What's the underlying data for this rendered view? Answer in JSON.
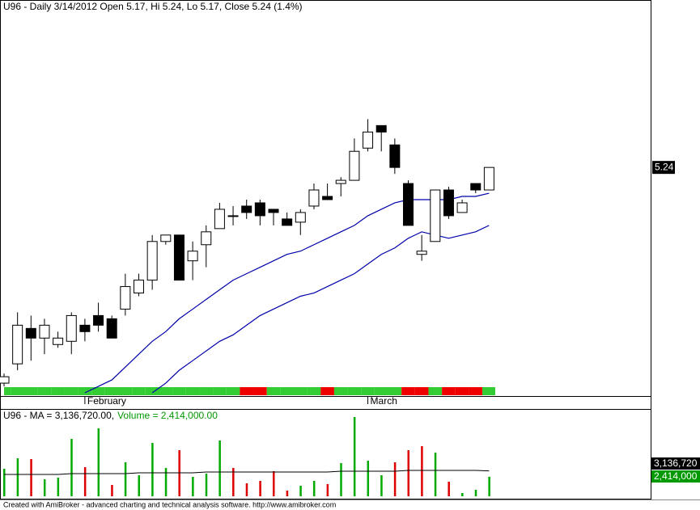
{
  "chart_data": [
    {
      "type": "candlestick",
      "title": "U96 - Daily 3/14/2012 Open 5.17, Hi 5.24, Lo 5.17, Close 5.24 (1.4%)",
      "categories": [
        null,
        null,
        null,
        null,
        null,
        null,
        "February",
        null,
        null,
        null,
        null,
        null,
        null,
        null,
        null,
        null,
        null,
        null,
        null,
        null,
        null,
        null,
        null,
        null,
        null,
        null,
        null,
        "March",
        null,
        null,
        null,
        null,
        null,
        null,
        null,
        null,
        null
      ],
      "open": [
        4.57,
        4.63,
        4.74,
        4.71,
        4.69,
        4.7,
        4.75,
        4.78,
        4.77,
        4.8,
        4.85,
        4.89,
        5.01,
        5.03,
        4.95,
        5.0,
        5.05,
        5.09,
        5.12,
        5.13,
        5.11,
        5.08,
        5.07,
        5.12,
        5.15,
        5.19,
        5.2,
        5.3,
        5.37,
        5.31,
        5.19,
        4.97,
        5.01,
        5.17,
        5.1,
        5.19,
        5.17
      ],
      "high": [
        4.6,
        4.79,
        4.78,
        4.77,
        4.73,
        4.79,
        4.77,
        4.82,
        4.78,
        4.91,
        4.91,
        5.03,
        5.03,
        5.03,
        5.01,
        5.06,
        5.13,
        5.12,
        5.14,
        5.14,
        5.11,
        5.1,
        5.11,
        5.19,
        5.19,
        5.21,
        5.33,
        5.39,
        5.37,
        5.33,
        5.2,
        5.03,
        5.17,
        5.18,
        5.14,
        5.19,
        5.24
      ],
      "low": [
        4.56,
        4.61,
        4.64,
        4.66,
        4.68,
        4.66,
        4.7,
        4.73,
        4.71,
        4.78,
        4.84,
        4.86,
        5.0,
        4.89,
        4.89,
        4.93,
        5.05,
        5.06,
        5.08,
        5.06,
        5.06,
        5.06,
        5.03,
        5.11,
        5.14,
        5.15,
        5.2,
        5.29,
        5.29,
        5.22,
        5.06,
        4.95,
        5.01,
        5.08,
        5.1,
        5.16,
        5.17
      ],
      "close": [
        4.59,
        4.75,
        4.71,
        4.75,
        4.71,
        4.78,
        4.73,
        4.75,
        4.71,
        4.87,
        4.89,
        5.01,
        5.03,
        4.89,
        4.98,
        5.04,
        5.11,
        5.09,
        5.1,
        5.09,
        5.1,
        5.06,
        5.1,
        5.17,
        5.14,
        5.2,
        5.29,
        5.35,
        5.35,
        5.24,
        5.06,
        4.98,
        5.17,
        5.09,
        5.13,
        5.17,
        5.24
      ],
      "up_color": "#ffffff",
      "down_color": "#000000",
      "series": [
        {
          "color": "#0000aa",
          "values": [
            null,
            null,
            null,
            null,
            null,
            null,
            4.54,
            4.56,
            4.58,
            4.62,
            4.66,
            4.7,
            4.73,
            4.77,
            4.8,
            4.83,
            4.86,
            4.89,
            4.91,
            4.93,
            4.95,
            4.97,
            4.98,
            5.0,
            5.02,
            5.04,
            5.06,
            5.09,
            5.11,
            5.13,
            5.14,
            5.14,
            5.14,
            5.14,
            5.15,
            5.15,
            5.16
          ]
        },
        {
          "color": "#0000aa",
          "values": [
            null,
            null,
            null,
            null,
            null,
            null,
            null,
            null,
            null,
            null,
            null,
            4.54,
            4.57,
            4.61,
            4.64,
            4.67,
            4.7,
            4.72,
            4.75,
            4.78,
            4.8,
            4.82,
            4.84,
            4.85,
            4.87,
            4.89,
            4.91,
            4.94,
            4.97,
            4.99,
            5.02,
            5.04,
            5.03,
            5.02,
            5.03,
            5.04,
            5.06
          ]
        }
      ],
      "ribbon_colors": [
        "#33cc33",
        "#33cc33",
        "#33cc33",
        "#33cc33",
        "#33cc33",
        "#33cc33",
        "#33cc33",
        "#33cc33",
        "#33cc33",
        "#33cc33",
        "#33cc33",
        "#33cc33",
        "#33cc33",
        "#33cc33",
        "#33cc33",
        "#33cc33",
        "#33cc33",
        "#33cc33",
        "#ee0000",
        "#ee0000",
        "#33cc33",
        "#33cc33",
        "#33cc33",
        "#33cc33",
        "#ee0000",
        "#33cc33",
        "#33cc33",
        "#33cc33",
        "#33cc33",
        "#33cc33",
        "#ee0000",
        "#ee0000",
        "#33cc33",
        "#ee0000",
        "#ee0000",
        "#ee0000",
        "#33cc33"
      ],
      "ylim": [
        4.53,
        5.76
      ]
    },
    {
      "type": "bar",
      "title_ma": "U96 - MA = 3,136,720.00,",
      "title_volume": "Volume = 2,414,000.00",
      "values": [
        3400000,
        4700000,
        4600000,
        2100000,
        2300000,
        7100000,
        3600000,
        8400000,
        1400000,
        4200000,
        2600000,
        6600000,
        3500000,
        5700000,
        2400000,
        2800000,
        6900000,
        3500000,
        1600000,
        1900000,
        3100000,
        700000,
        1300000,
        1900000,
        1500000,
        4100000,
        9800000,
        4400000,
        2600000,
        4200000,
        5700000,
        6200000,
        5400000,
        1800000,
        400000,
        800000,
        2414000
      ],
      "colors": [
        "#00aa00",
        "#00aa00",
        "#dd0000",
        "#00aa00",
        "#00aa00",
        "#00aa00",
        "#dd0000",
        "#00aa00",
        "#dd0000",
        "#00aa00",
        "#00aa00",
        "#00aa00",
        "#00aa00",
        "#dd0000",
        "#00aa00",
        "#00aa00",
        "#00aa00",
        "#dd0000",
        "#dd0000",
        "#dd0000",
        "#dd0000",
        "#dd0000",
        "#00aa00",
        "#00aa00",
        "#dd0000",
        "#00aa00",
        "#00aa00",
        "#00aa00",
        "#00aa00",
        "#dd0000",
        "#dd0000",
        "#dd0000",
        "#00aa00",
        "#dd0000",
        "#00aa00",
        "#00aa00",
        "#00aa00"
      ],
      "last_label": "2,414,000",
      "ma": {
        "color": "#000000",
        "last_label": "3,136,720",
        "values": [
          2700000,
          2700000,
          2700000,
          2700000,
          2700000,
          2800000,
          2800000,
          2800000,
          2800000,
          2800000,
          2900000,
          2900000,
          2900000,
          2900000,
          2900000,
          3000000,
          3000000,
          3000000,
          3000000,
          3000000,
          3000000,
          3000000,
          3000000,
          3000000,
          3000000,
          3100000,
          3100000,
          3100000,
          3100000,
          3100000,
          3200000,
          3200000,
          3200000,
          3200000,
          3200000,
          3200000,
          3136720
        ]
      },
      "ylim": [
        0,
        10700000
      ]
    }
  ],
  "footer": "Created with AmiBroker - advanced charting and technical analysis software. http://www.amibroker.com"
}
